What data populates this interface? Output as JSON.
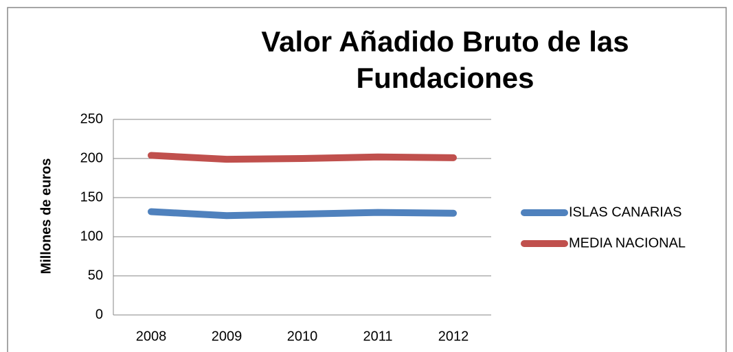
{
  "chart_data": {
    "type": "line",
    "title": "Valor Añadido Bruto de las Fundaciones",
    "y_label": "Millones de euros",
    "categories": [
      "2008",
      "2009",
      "2010",
      "2011",
      "2012"
    ],
    "series": [
      {
        "name": "ISLAS CANARIAS",
        "color": "#4f81bd",
        "values": [
          132,
          127,
          129,
          131,
          130
        ]
      },
      {
        "name": "MEDIA NACIONAL",
        "color": "#c0504d",
        "values": [
          204,
          199,
          200,
          202,
          201
        ]
      }
    ],
    "ylim": [
      0,
      250
    ],
    "yticks": [
      0,
      50,
      100,
      150,
      200,
      250
    ],
    "grid": true,
    "legend": "right"
  }
}
